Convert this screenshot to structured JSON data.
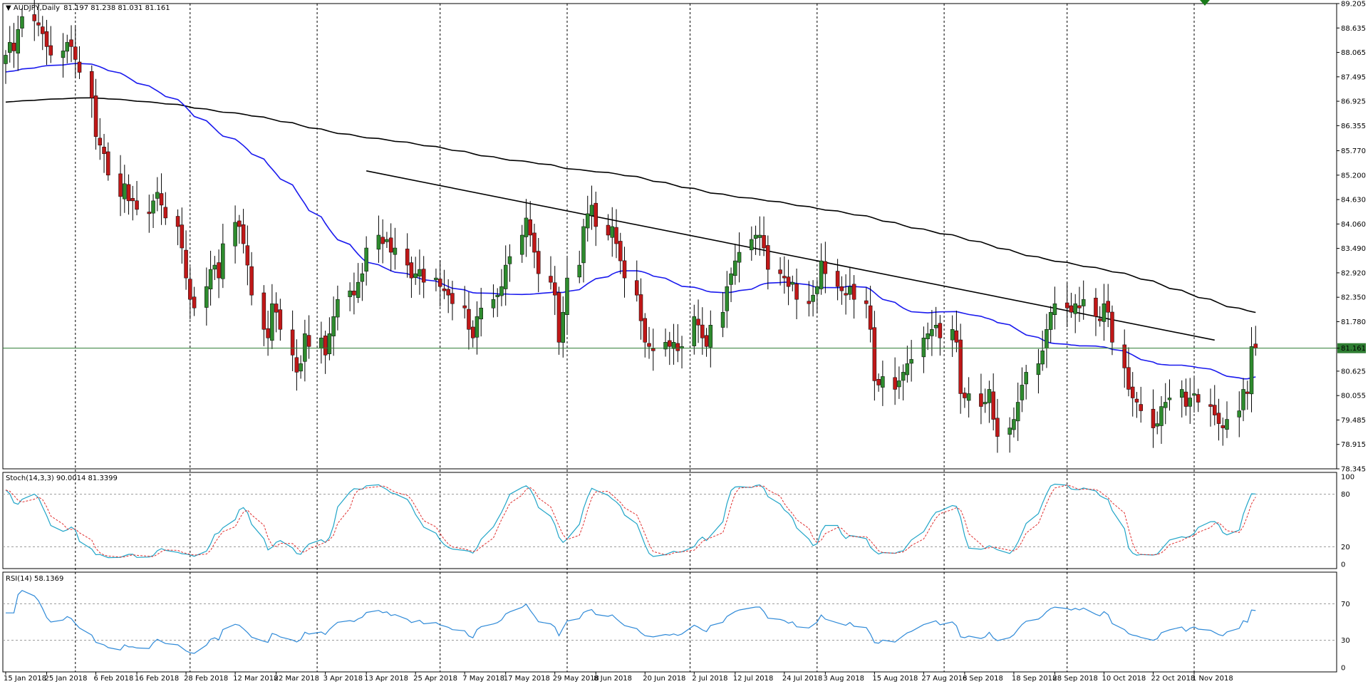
{
  "chart_data": {
    "type": "candlestick",
    "symbol_header": "AUDJPY,Daily",
    "ohlc_header": "81.197 81.238 81.031 81.161",
    "last_price": 81.161,
    "last_price_label": "81.161",
    "price_ticks": [
      "89.205",
      "88.635",
      "88.065",
      "87.495",
      "86.925",
      "86.355",
      "85.770",
      "85.200",
      "84.630",
      "84.060",
      "83.490",
      "82.920",
      "82.350",
      "81.780",
      "81.161",
      "80.625",
      "80.055",
      "79.485",
      "78.915",
      "78.345"
    ],
    "price_range": [
      78.345,
      89.205
    ],
    "x_labels": [
      "15 Jan 2018",
      "25 Jan 2018",
      "6 Feb 2018",
      "16 Feb 2018",
      "28 Feb 2018",
      "12 Mar 2018",
      "22 Mar 2018",
      "3 Apr 2018",
      "13 Apr 2018",
      "25 Apr 2018",
      "7 May 2018",
      "17 May 2018",
      "29 May 2018",
      "8 Jun 2018",
      "20 Jun 2018",
      "2 Jul 2018",
      "12 Jul 2018",
      "24 Jul 2018",
      "3 Aug 2018",
      "15 Aug 2018",
      "27 Aug 2018",
      "6 Sep 2018",
      "18 Sep 2018",
      "28 Sep 2018",
      "10 Oct 2018",
      "22 Oct 2018",
      "1 Nov 2018"
    ],
    "period_separators": [
      "1 Feb 2018",
      "1 Mar 2018",
      "1 Apr 2018",
      "1 May 2018",
      "1 Jun 2018",
      "1 Jul 2018",
      "1 Aug 2018",
      "1 Sep 2018",
      "1 Oct 2018",
      "1 Nov 2018"
    ],
    "closes": [
      88.0,
      88.3,
      88.1,
      88.6,
      88.9,
      88.8,
      88.7,
      88.5,
      88.2,
      88.0,
      88.1,
      88.3,
      88.2,
      87.9,
      87.6,
      87.0,
      86.1,
      85.9,
      85.7,
      85.2,
      84.7,
      85.0,
      84.6,
      84.6,
      84.4,
      84.3,
      84.6,
      84.8,
      84.5,
      84.2,
      84.0,
      83.5,
      82.8,
      82.3,
      82.1,
      82.6,
      83.0,
      83.1,
      82.8,
      83.6,
      84.1,
      84.0,
      83.6,
      83.1,
      82.4,
      81.6,
      81.4,
      82.2,
      82.0,
      81.6,
      81.0,
      80.6,
      80.8,
      81.5,
      81.2,
      81.4,
      81.0,
      81.5,
      81.9,
      82.3,
      82.5,
      82.4,
      82.7,
      82.9,
      83.5,
      83.8,
      83.6,
      83.7,
      83.4,
      83.5,
      83.1,
      82.8,
      82.9,
      83.0,
      82.7,
      82.8,
      82.6,
      82.5,
      82.4,
      82.2,
      82.1,
      81.6,
      81.4,
      81.9,
      82.1,
      82.3,
      82.4,
      82.6,
      83.1,
      83.3,
      83.8,
      84.2,
      83.8,
      83.4,
      82.9,
      82.7,
      82.4,
      81.3,
      82.0,
      82.8,
      83.1,
      84.0,
      84.3,
      84.5,
      84.0,
      83.8,
      84.0,
      83.6,
      83.2,
      82.8,
      82.4,
      81.8,
      81.3,
      81.2,
      81.1,
      81.3,
      81.2,
      81.3,
      81.1,
      81.2,
      81.9,
      81.7,
      81.4,
      81.2,
      81.7,
      82.0,
      82.6,
      82.9,
      83.2,
      83.4,
      83.7,
      83.8,
      83.8,
      83.5,
      83.0,
      82.9,
      82.8,
      82.6,
      82.7,
      82.3,
      82.2,
      82.4,
      82.6,
      83.2,
      82.9,
      82.6,
      82.5,
      82.4,
      82.6,
      82.3,
      82.2,
      81.6,
      80.4,
      80.3,
      80.5,
      80.2,
      80.4,
      80.6,
      80.8,
      80.9,
      81.4,
      81.5,
      81.6,
      81.7,
      81.4,
      81.6,
      81.3,
      80.1,
      80.0,
      80.1,
      79.8,
      79.9,
      80.2,
      79.5,
      79.1,
      79.3,
      79.5,
      79.9,
      80.3,
      80.6,
      80.8,
      81.1,
      81.6,
      82.0,
      82.2,
      82.1,
      82.0,
      82.2,
      82.1,
      82.3,
      81.9,
      81.8,
      82.2,
      82.0,
      81.3,
      80.7,
      80.2,
      80.0,
      79.9,
      79.7,
      79.3,
      79.4,
      79.8,
      79.9,
      80.0,
      80.2,
      79.8,
      80.0,
      80.1,
      79.9,
      79.8,
      79.6,
      79.4,
      79.3,
      79.5,
      79.7,
      80.2,
      80.1,
      81.2,
      81.161
    ],
    "sma_blue_label": "",
    "sma_black_label": "",
    "trendline": {
      "start_date": "13 Apr 2018",
      "start_price": 85.3,
      "end_date": "6 Nov 2018",
      "end_price": 81.35
    },
    "stochastic": {
      "header": "Stoch(14,3,3) 90.0014 81.3399",
      "levels": [
        "100",
        "80",
        "20",
        "0"
      ],
      "range": [
        0,
        100
      ]
    },
    "rsi": {
      "header": "RSI(14) 58.1369",
      "levels": [
        "70",
        "30",
        "0"
      ],
      "range": [
        0,
        100
      ]
    }
  },
  "colors": {
    "background": "#ffffff",
    "bull_candle": "#2e8b2e",
    "bear_candle": "#c01818",
    "wick": "#000000",
    "sma_fast": "#1a1aee",
    "sma_slow": "#000000",
    "price_line": "#2e7d32",
    "stoch_main": "#21a5c8",
    "stoch_signal": "#e03030",
    "rsi_line": "#2f8ad8",
    "grid_separator": "#000000"
  }
}
